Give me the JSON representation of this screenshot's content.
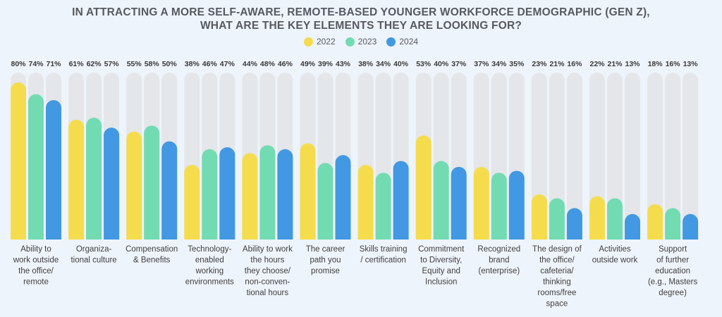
{
  "colors": {
    "s2022": "#f5dc4d",
    "s2023": "#72dbb2",
    "s2024": "#4298e2",
    "track": "#e4e6ea"
  },
  "chart_data": {
    "type": "bar",
    "title_line1": "IN ATTRACTING A MORE SELF-AWARE, REMOTE-BASED YOUNGER WORKFORCE DEMOGRAPHIC (GEN Z),",
    "title_line2": "WHAT ARE THE KEY ELEMENTS THEY ARE LOOKING FOR?",
    "ylim": [
      0,
      80
    ],
    "legend_position": "top-center",
    "grid": false,
    "categories": [
      "Ability to work outside the office/ remote",
      "Organiza- tional culture",
      "Compensation & Benefits",
      "Technology- enabled working environments",
      "Ability to work the hours they choose/ non-conven- tional hours",
      "The career path you promise",
      "Skills training / certification",
      "Commitment to Diversity, Equity and Inclusion",
      "Recognized brand (enterprise)",
      "The design of the office/ cafeteria/ thinking rooms/free space",
      "Activities outside work",
      "Support of further education (e.g., Masters degree)"
    ],
    "category_lines": [
      [
        "Ability to",
        "work outside",
        "the office/",
        "remote"
      ],
      [
        "Organiza-",
        "tional culture"
      ],
      [
        "Compensation",
        "& Benefits"
      ],
      [
        "Technology-",
        "enabled",
        "working",
        "environments"
      ],
      [
        "Ability to work",
        "the hours",
        "they choose/",
        "non-conven-",
        "tional hours"
      ],
      [
        "The career",
        "path you",
        "promise"
      ],
      [
        "Skills training",
        "/ certification"
      ],
      [
        "Commitment",
        "to Diversity,",
        "Equity and",
        "Inclusion"
      ],
      [
        "Recognized",
        "brand",
        "(enterprise)"
      ],
      [
        "The design of",
        "the office/",
        "cafeteria/",
        "thinking",
        "rooms/free",
        "space"
      ],
      [
        "Activities",
        "outside work"
      ],
      [
        "Support",
        "of further",
        "education",
        "(e.g., Masters",
        "degree)"
      ]
    ],
    "series": [
      {
        "name": "2022",
        "values": [
          80,
          61,
          55,
          38,
          44,
          49,
          38,
          53,
          37,
          23,
          22,
          18
        ]
      },
      {
        "name": "2023",
        "values": [
          74,
          62,
          58,
          46,
          48,
          39,
          34,
          40,
          34,
          21,
          21,
          16
        ]
      },
      {
        "name": "2024",
        "values": [
          71,
          57,
          50,
          47,
          46,
          43,
          40,
          37,
          35,
          16,
          13,
          13
        ]
      }
    ]
  }
}
